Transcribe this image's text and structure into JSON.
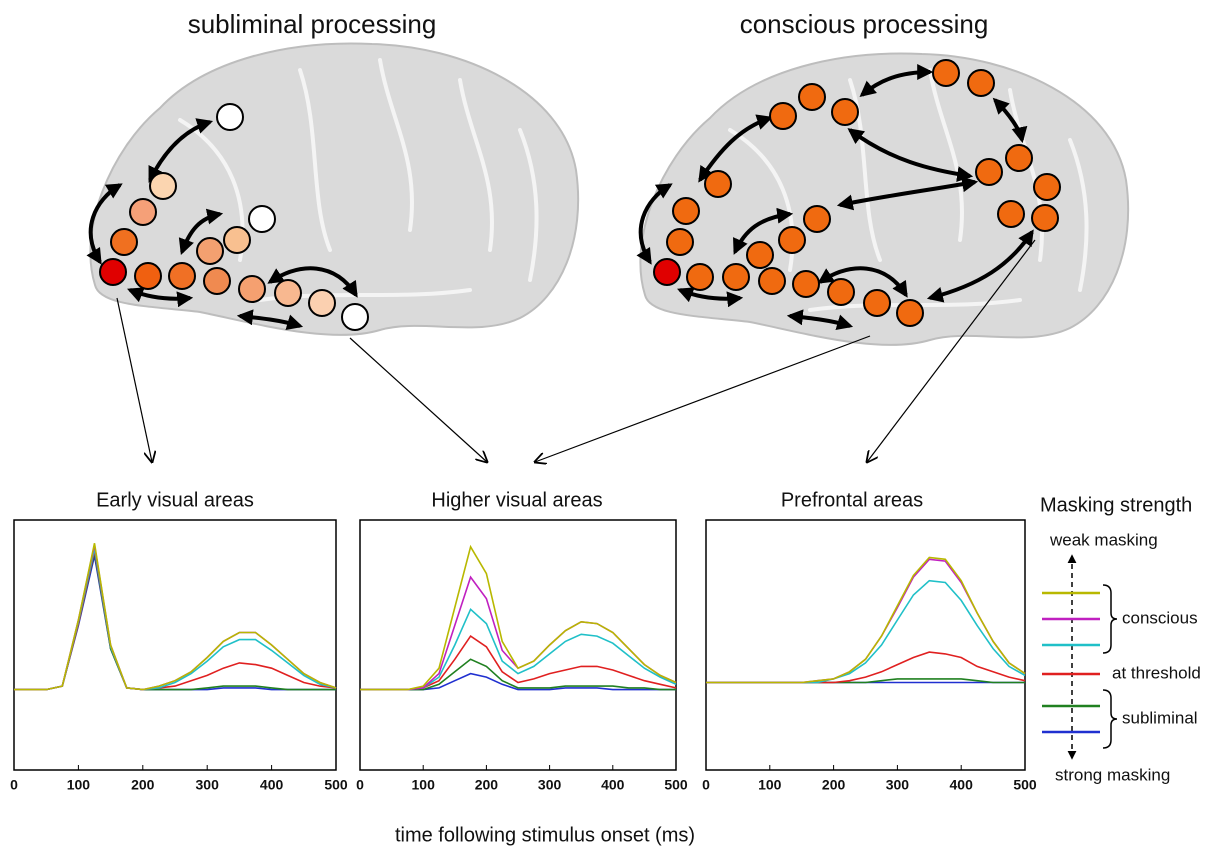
{
  "figure": {
    "left_title": "subliminal processing",
    "right_title": "conscious processing",
    "x_label": "time following stimulus onset (ms)"
  },
  "legend": {
    "title": "Masking strength",
    "top": "weak masking",
    "bottom": "strong masking",
    "groups": [
      "conscious",
      "at threshold",
      "subliminal"
    ]
  },
  "chart_data": [
    {
      "type": "line",
      "title": "Early visual areas",
      "x": [
        0,
        25,
        50,
        75,
        100,
        125,
        150,
        175,
        200,
        225,
        250,
        275,
        300,
        325,
        350,
        375,
        400,
        425,
        450,
        475,
        500
      ],
      "xlim": [
        0,
        500
      ],
      "xticks": [
        0,
        100,
        200,
        300,
        400,
        500
      ],
      "ylim": [
        -0.35,
        1.05
      ],
      "series": [
        {
          "color": "#b8b800",
          "values": [
            0.1,
            0.1,
            0.1,
            0.12,
            0.49,
            0.92,
            0.35,
            0.11,
            0.1,
            0.12,
            0.15,
            0.2,
            0.28,
            0.37,
            0.42,
            0.42,
            0.35,
            0.27,
            0.19,
            0.14,
            0.11
          ]
        },
        {
          "color": "#c020c0",
          "values": [
            0.1,
            0.1,
            0.1,
            0.12,
            0.49,
            0.91,
            0.35,
            0.11,
            0.1,
            0.12,
            0.15,
            0.2,
            0.28,
            0.37,
            0.42,
            0.42,
            0.35,
            0.27,
            0.19,
            0.14,
            0.11
          ]
        },
        {
          "color": "#20c0c8",
          "values": [
            0.1,
            0.1,
            0.1,
            0.12,
            0.48,
            0.89,
            0.34,
            0.11,
            0.1,
            0.11,
            0.14,
            0.19,
            0.26,
            0.34,
            0.38,
            0.38,
            0.32,
            0.25,
            0.18,
            0.13,
            0.11
          ]
        },
        {
          "color": "#e02020",
          "values": [
            0.1,
            0.1,
            0.1,
            0.12,
            0.47,
            0.88,
            0.34,
            0.11,
            0.1,
            0.11,
            0.12,
            0.15,
            0.18,
            0.22,
            0.25,
            0.24,
            0.22,
            0.18,
            0.14,
            0.12,
            0.11
          ]
        },
        {
          "color": "#208020",
          "values": [
            0.1,
            0.1,
            0.1,
            0.12,
            0.47,
            0.87,
            0.33,
            0.11,
            0.1,
            0.1,
            0.1,
            0.1,
            0.11,
            0.12,
            0.12,
            0.12,
            0.11,
            0.1,
            0.1,
            0.1,
            0.1
          ]
        },
        {
          "color": "#2030d0",
          "values": [
            0.1,
            0.1,
            0.1,
            0.12,
            0.46,
            0.85,
            0.33,
            0.11,
            0.1,
            0.1,
            0.1,
            0.1,
            0.1,
            0.11,
            0.11,
            0.11,
            0.1,
            0.1,
            0.1,
            0.1,
            0.1
          ]
        }
      ]
    },
    {
      "type": "line",
      "title": "Higher visual areas",
      "x": [
        0,
        25,
        50,
        75,
        100,
        125,
        150,
        175,
        200,
        225,
        250,
        275,
        300,
        325,
        350,
        375,
        400,
        425,
        450,
        475,
        500
      ],
      "xlim": [
        0,
        500
      ],
      "xticks": [
        0,
        100,
        200,
        300,
        400,
        500
      ],
      "ylim": [
        -0.35,
        1.05
      ],
      "series": [
        {
          "color": "#b8b800",
          "values": [
            0.1,
            0.1,
            0.1,
            0.1,
            0.12,
            0.22,
            0.56,
            0.9,
            0.75,
            0.37,
            0.22,
            0.26,
            0.35,
            0.43,
            0.48,
            0.47,
            0.42,
            0.33,
            0.24,
            0.18,
            0.14
          ]
        },
        {
          "color": "#c020c0",
          "values": [
            0.1,
            0.1,
            0.1,
            0.1,
            0.11,
            0.19,
            0.46,
            0.73,
            0.61,
            0.32,
            0.22,
            0.26,
            0.35,
            0.43,
            0.48,
            0.47,
            0.42,
            0.33,
            0.24,
            0.18,
            0.14
          ]
        },
        {
          "color": "#20c0c8",
          "values": [
            0.1,
            0.1,
            0.1,
            0.1,
            0.11,
            0.17,
            0.35,
            0.55,
            0.47,
            0.26,
            0.19,
            0.23,
            0.3,
            0.37,
            0.41,
            0.4,
            0.36,
            0.29,
            0.22,
            0.17,
            0.13
          ]
        },
        {
          "color": "#e02020",
          "values": [
            0.1,
            0.1,
            0.1,
            0.1,
            0.11,
            0.15,
            0.27,
            0.4,
            0.34,
            0.2,
            0.14,
            0.16,
            0.19,
            0.21,
            0.23,
            0.23,
            0.21,
            0.18,
            0.15,
            0.13,
            0.11
          ]
        },
        {
          "color": "#208020",
          "values": [
            0.1,
            0.1,
            0.1,
            0.1,
            0.1,
            0.13,
            0.2,
            0.27,
            0.23,
            0.15,
            0.11,
            0.11,
            0.11,
            0.12,
            0.12,
            0.12,
            0.12,
            0.11,
            0.11,
            0.1,
            0.1
          ]
        },
        {
          "color": "#2030d0",
          "values": [
            0.1,
            0.1,
            0.1,
            0.1,
            0.1,
            0.11,
            0.15,
            0.19,
            0.17,
            0.13,
            0.1,
            0.1,
            0.1,
            0.11,
            0.11,
            0.11,
            0.1,
            0.1,
            0.1,
            0.1,
            0.1
          ]
        }
      ]
    },
    {
      "type": "line",
      "title": "Prefrontal areas",
      "x": [
        0,
        25,
        50,
        75,
        100,
        125,
        150,
        175,
        200,
        225,
        250,
        275,
        300,
        325,
        350,
        375,
        400,
        425,
        450,
        475,
        500
      ],
      "xlim": [
        0,
        500
      ],
      "xticks": [
        0,
        100,
        200,
        300,
        400,
        500
      ],
      "ylim": [
        -0.35,
        1.05
      ],
      "series": [
        {
          "color": "#b8b800",
          "values": [
            0.14,
            0.14,
            0.14,
            0.14,
            0.14,
            0.14,
            0.14,
            0.15,
            0.16,
            0.2,
            0.27,
            0.4,
            0.57,
            0.74,
            0.84,
            0.83,
            0.71,
            0.53,
            0.37,
            0.25,
            0.19
          ]
        },
        {
          "color": "#c020c0",
          "values": [
            0.14,
            0.14,
            0.14,
            0.14,
            0.14,
            0.14,
            0.14,
            0.15,
            0.16,
            0.2,
            0.27,
            0.4,
            0.56,
            0.73,
            0.83,
            0.82,
            0.7,
            0.53,
            0.37,
            0.25,
            0.19
          ]
        },
        {
          "color": "#20c0c8",
          "values": [
            0.14,
            0.14,
            0.14,
            0.14,
            0.14,
            0.14,
            0.14,
            0.14,
            0.16,
            0.19,
            0.25,
            0.35,
            0.49,
            0.63,
            0.71,
            0.7,
            0.6,
            0.46,
            0.33,
            0.23,
            0.18
          ]
        },
        {
          "color": "#e02020",
          "values": [
            0.14,
            0.14,
            0.14,
            0.14,
            0.14,
            0.14,
            0.14,
            0.14,
            0.14,
            0.15,
            0.17,
            0.2,
            0.24,
            0.28,
            0.31,
            0.3,
            0.28,
            0.23,
            0.2,
            0.17,
            0.15
          ]
        },
        {
          "color": "#208020",
          "values": [
            0.14,
            0.14,
            0.14,
            0.14,
            0.14,
            0.14,
            0.14,
            0.14,
            0.14,
            0.14,
            0.14,
            0.15,
            0.16,
            0.16,
            0.16,
            0.16,
            0.16,
            0.15,
            0.14,
            0.14,
            0.14
          ]
        },
        {
          "color": "#2030d0",
          "values": [
            0.14,
            0.14,
            0.14,
            0.14,
            0.14,
            0.14,
            0.14,
            0.14,
            0.14,
            0.14,
            0.14,
            0.14,
            0.14,
            0.14,
            0.14,
            0.14,
            0.14,
            0.14,
            0.14,
            0.14,
            0.14
          ]
        }
      ]
    }
  ]
}
